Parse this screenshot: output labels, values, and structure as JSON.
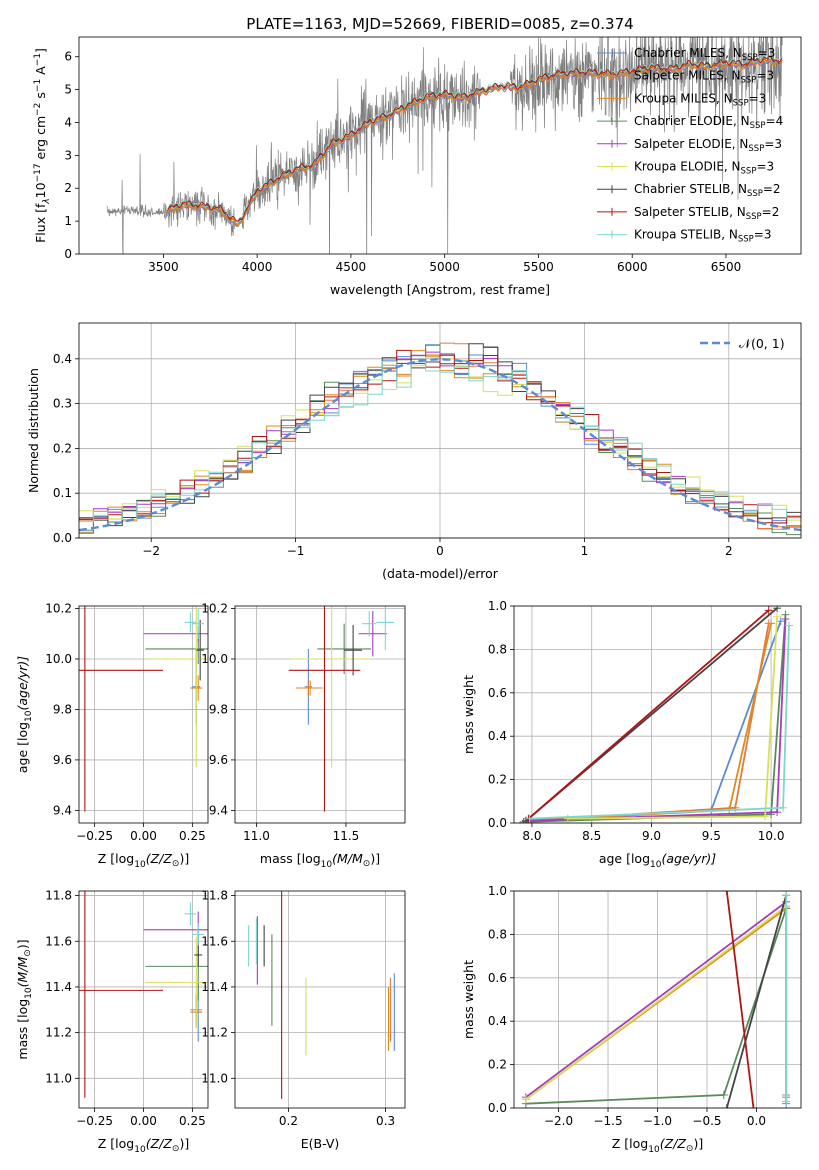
{
  "figure_title": "PLATE=1163, MJD=52669, FIBERID=0085, z=0.374",
  "legend_sub": "SSP",
  "colors": {
    "spectrum": "#7f7f7f",
    "gaussian": "#5b8bd6",
    "grid": "#b0b0b0"
  },
  "models": [
    {
      "name": "Chabrier MILES, N",
      "nssp": "=3",
      "color": "#5b8bd6"
    },
    {
      "name": "Salpeter MILES, N",
      "nssp": "=3",
      "color": "#e07b39"
    },
    {
      "name": "Kroupa MILES, N",
      "nssp": "=3",
      "color": "#e08a1e"
    },
    {
      "name": "Chabrier ELODIE, N",
      "nssp": "=4",
      "color": "#5a8a5a"
    },
    {
      "name": "Salpeter ELODIE, N",
      "nssp": "=3",
      "color": "#a63cc0"
    },
    {
      "name": "Kroupa ELODIE, N",
      "nssp": "=3",
      "color": "#d8e05a"
    },
    {
      "name": "Chabrier STELIB, N",
      "nssp": "=2",
      "color": "#444444"
    },
    {
      "name": "Salpeter STELIB, N",
      "nssp": "=2",
      "color": "#b01515"
    },
    {
      "name": "Kroupa STELIB, N",
      "nssp": "=3",
      "color": "#7fd6cf"
    }
  ],
  "chart_data": [
    {
      "id": "spectrum",
      "type": "line",
      "xlabel": "wavelength [Angstrom, rest frame]",
      "ylabel": "Flux [f",
      "ylabel_rest": "10",
      "ylabel_exp": "−17",
      "ylabel_units": " erg cm",
      "xlim": [
        3050,
        6900
      ],
      "ylim": [
        0,
        6.6
      ],
      "xticks": [
        3500,
        4000,
        4500,
        5000,
        5500,
        6000,
        6500
      ],
      "yticks": [
        0,
        1,
        2,
        3,
        4,
        5,
        6
      ],
      "continuum": [
        [
          3200,
          1.25
        ],
        [
          3300,
          1.35
        ],
        [
          3400,
          1.3
        ],
        [
          3500,
          1.25
        ],
        [
          3600,
          1.5
        ],
        [
          3700,
          1.45
        ],
        [
          3800,
          1.35
        ],
        [
          3900,
          0.9
        ],
        [
          4000,
          1.9
        ],
        [
          4100,
          2.25
        ],
        [
          4200,
          2.55
        ],
        [
          4300,
          2.7
        ],
        [
          4400,
          3.35
        ],
        [
          4500,
          3.6
        ],
        [
          4600,
          4.0
        ],
        [
          4700,
          4.2
        ],
        [
          4800,
          4.5
        ],
        [
          4900,
          4.75
        ],
        [
          5000,
          4.85
        ],
        [
          5100,
          4.75
        ],
        [
          5200,
          4.95
        ],
        [
          5300,
          5.1
        ],
        [
          5400,
          5.05
        ],
        [
          5500,
          5.3
        ],
        [
          5600,
          5.45
        ],
        [
          5700,
          5.5
        ],
        [
          5800,
          5.5
        ],
        [
          5900,
          5.45
        ],
        [
          6000,
          5.55
        ],
        [
          6100,
          5.65
        ],
        [
          6200,
          5.6
        ],
        [
          6300,
          5.75
        ],
        [
          6400,
          5.7
        ],
        [
          6500,
          5.8
        ],
        [
          6600,
          5.75
        ],
        [
          6700,
          5.9
        ],
        [
          6800,
          5.85
        ]
      ],
      "model_start": 3520,
      "data_segments": [
        [
          3200,
          3880
        ],
        [
          3920,
          5190
        ],
        [
          5350,
          6800
        ]
      ]
    },
    {
      "id": "residuals",
      "type": "histogram",
      "xlabel": "(data-model)/error",
      "ylabel": "Normed distribution",
      "xlim": [
        -2.5,
        2.5
      ],
      "ylim": [
        0,
        0.48
      ],
      "xticks": [
        -2,
        -1,
        0,
        1,
        2
      ],
      "yticks": [
        0.0,
        0.1,
        0.2,
        0.3,
        0.4
      ],
      "legend": "𝒩(0, 1)",
      "bin_width": 0.1
    },
    {
      "id": "age-vs-Z",
      "type": "errorbar",
      "xlabel": "Z [log",
      "xlabel_sub": "10",
      "xlabel_rest": "(Z/Z",
      "ylabel": "age  [log",
      "ylabel_sub": "10",
      "ylabel_rest": "(age/yr)]",
      "xlim": [
        -0.33,
        0.33
      ],
      "ylim": [
        9.35,
        10.21
      ],
      "xticks": [
        -0.25,
        0.0,
        0.25
      ],
      "yticks": [
        9.4,
        9.6,
        9.8,
        10.0,
        10.2
      ],
      "points": [
        {
          "m": 0,
          "x": 0.27,
          "y": 9.89,
          "xe": 0.02,
          "ye": 0.15
        },
        {
          "m": 1,
          "x": 0.27,
          "y": 9.885,
          "xe": 0.03,
          "ye": 0.05
        },
        {
          "m": 2,
          "x": 0.28,
          "y": 9.885,
          "xe": 0.02,
          "ye": 0.05
        },
        {
          "m": 3,
          "x": 0.28,
          "y": 10.04,
          "xe": 0.27,
          "ye": 0.06
        },
        {
          "m": 4,
          "x": 0.28,
          "y": 10.1,
          "xe": 0.28,
          "ye": 0.03
        },
        {
          "m": 5,
          "x": 0.27,
          "y": 10.0,
          "xe": 0.26,
          "ye": 0.43
        },
        {
          "m": 6,
          "x": 0.29,
          "y": 10.035,
          "xe": 0.02,
          "ye": 0.12
        },
        {
          "m": 7,
          "x": -0.3,
          "y": 9.955,
          "xe": 0.4,
          "ye": 0.56
        },
        {
          "m": 8,
          "x": 0.28,
          "y": 10.14,
          "xe": 0.03,
          "ye": 0.06
        },
        {
          "m": 8,
          "x": 0.24,
          "y": 10.145,
          "xe": 0.03,
          "ye": 0.04
        }
      ]
    },
    {
      "id": "age-vs-mass",
      "type": "errorbar",
      "xlabel": "mass [log",
      "xlabel_sub": "10",
      "xlabel_rest": "(M/M",
      "xlim": [
        10.88,
        11.83
      ],
      "ylim": [
        9.35,
        10.21
      ],
      "xticks": [
        11.0,
        11.5
      ],
      "yticks": [
        9.4,
        9.6,
        9.8,
        10.0,
        10.2
      ],
      "points": [
        {
          "m": 0,
          "x": 11.29,
          "y": 9.89,
          "xe": 0.02,
          "ye": 0.15
        },
        {
          "m": 1,
          "x": 11.29,
          "y": 9.885,
          "xe": 0.07,
          "ye": 0.03
        },
        {
          "m": 2,
          "x": 11.3,
          "y": 9.885,
          "xe": 0.07,
          "ye": 0.03
        },
        {
          "m": 3,
          "x": 11.49,
          "y": 10.04,
          "xe": 0.15,
          "ye": 0.1
        },
        {
          "m": 4,
          "x": 11.65,
          "y": 10.1,
          "xe": 0.08,
          "ye": 0.09
        },
        {
          "m": 5,
          "x": 11.42,
          "y": 10.0,
          "xe": 0.22,
          "ye": 0.43
        },
        {
          "m": 6,
          "x": 11.54,
          "y": 10.035,
          "xe": 0.05,
          "ye": 0.1
        },
        {
          "m": 7,
          "x": 11.38,
          "y": 9.955,
          "xe": 0.2,
          "ye": 0.56
        },
        {
          "m": 8,
          "x": 11.63,
          "y": 10.14,
          "xe": 0.04,
          "ye": 0.05
        },
        {
          "m": 8,
          "x": 11.72,
          "y": 10.145,
          "xe": 0.05,
          "ye": 0.11
        }
      ]
    },
    {
      "id": "mass-weight-vs-age",
      "type": "line",
      "xlabel": "age  [log",
      "xlabel_sub": "10",
      "xlabel_rest": "(age/yr)]",
      "ylabel": "mass weight",
      "xlim": [
        7.85,
        10.25
      ],
      "ylim": [
        0,
        1
      ],
      "xticks": [
        8.0,
        8.5,
        9.0,
        9.5,
        10.0
      ],
      "yticks": [
        0.0,
        0.2,
        0.4,
        0.6,
        0.8,
        1.0
      ],
      "series": [
        {
          "m": 0,
          "x": [
            7.95,
            9.5,
            10.08
          ],
          "y": [
            0.01,
            0.06,
            0.93
          ]
        },
        {
          "m": 1,
          "x": [
            7.95,
            9.7,
            9.98
          ],
          "y": [
            0.01,
            0.07,
            0.92
          ]
        },
        {
          "m": 2,
          "x": [
            8.3,
            9.65,
            10.0
          ],
          "y": [
            0.02,
            0.06,
            0.92
          ]
        },
        {
          "m": 3,
          "x": [
            7.93,
            10.0,
            10.12
          ],
          "y": [
            0.005,
            0.04,
            0.96
          ]
        },
        {
          "m": 4,
          "x": [
            7.95,
            10.05,
            10.12
          ],
          "y": [
            0.01,
            0.05,
            0.94
          ]
        },
        {
          "m": 5,
          "x": [
            8.3,
            9.95,
            10.05
          ],
          "y": [
            0.02,
            0.03,
            0.95
          ]
        },
        {
          "m": 6,
          "x": [
            7.95,
            10.05
          ],
          "y": [
            0.01,
            0.99
          ]
        },
        {
          "m": 7,
          "x": [
            7.97,
            9.98
          ],
          "y": [
            0.02,
            0.98
          ]
        },
        {
          "m": 8,
          "x": [
            7.98,
            10.1,
            10.15
          ],
          "y": [
            0.02,
            0.07,
            0.91
          ]
        }
      ]
    },
    {
      "id": "mass-vs-Z",
      "type": "errorbar",
      "xlabel": "Z [log",
      "xlabel_sub": "10",
      "xlabel_rest": "(Z/Z",
      "ylabel": "mass [log",
      "ylabel_sub": "10",
      "ylabel_rest": "(M/M",
      "xlim": [
        -0.33,
        0.33
      ],
      "ylim": [
        10.87,
        11.82
      ],
      "xticks": [
        -0.25,
        0.0,
        0.25
      ],
      "yticks": [
        11.0,
        11.2,
        11.4,
        11.6,
        11.8
      ],
      "points": [
        {
          "m": 0,
          "x": 0.28,
          "y": 11.29,
          "xe": 0.02,
          "ye": 0.13
        },
        {
          "m": 1,
          "x": 0.27,
          "y": 11.29,
          "xe": 0.03,
          "ye": 0.07
        },
        {
          "m": 2,
          "x": 0.27,
          "y": 11.3,
          "xe": 0.03,
          "ye": 0.07
        },
        {
          "m": 3,
          "x": 0.28,
          "y": 11.49,
          "xe": 0.27,
          "ye": 0.15
        },
        {
          "m": 4,
          "x": 0.28,
          "y": 11.65,
          "xe": 0.28,
          "ye": 0.08
        },
        {
          "m": 5,
          "x": 0.27,
          "y": 11.42,
          "xe": 0.26,
          "ye": 0.2
        },
        {
          "m": 6,
          "x": 0.28,
          "y": 11.54,
          "xe": 0.02,
          "ye": 0.05
        },
        {
          "m": 7,
          "x": -0.3,
          "y": 11.385,
          "xe": 0.4,
          "ye": 0.47
        },
        {
          "m": 8,
          "x": 0.28,
          "y": 11.63,
          "xe": 0.03,
          "ye": 0.05
        },
        {
          "m": 8,
          "x": 0.24,
          "y": 11.72,
          "xe": 0.03,
          "ye": 0.05
        }
      ]
    },
    {
      "id": "mass-vs-EBV",
      "type": "errorbar",
      "xlabel": "E(B-V)",
      "xlim": [
        0.145,
        0.32
      ],
      "ylim": [
        10.87,
        11.82
      ],
      "xticks": [
        0.2,
        0.3
      ],
      "yticks": [
        11.0,
        11.2,
        11.4,
        11.6,
        11.8
      ],
      "points": [
        {
          "m": 0,
          "x": 0.309,
          "y": 11.29,
          "xe": 0,
          "ye": 0.17
        },
        {
          "m": 1,
          "x": 0.305,
          "y": 11.3,
          "xe": 0,
          "ye": 0.14
        },
        {
          "m": 2,
          "x": 0.303,
          "y": 11.26,
          "xe": 0,
          "ye": 0.14
        },
        {
          "m": 3,
          "x": 0.183,
          "y": 11.43,
          "xe": 0,
          "ye": 0.2
        },
        {
          "m": 4,
          "x": 0.168,
          "y": 11.56,
          "xe": 0,
          "ye": 0.15
        },
        {
          "m": 5,
          "x": 0.218,
          "y": 11.27,
          "xe": 0,
          "ye": 0.17
        },
        {
          "m": 6,
          "x": 0.175,
          "y": 11.58,
          "xe": 0,
          "ye": 0.09
        },
        {
          "m": 7,
          "x": 0.193,
          "y": 11.39,
          "xe": 0,
          "ye": 0.48
        },
        {
          "m": 8,
          "x": 0.159,
          "y": 11.58,
          "xe": 0,
          "ye": 0.09
        },
        {
          "m": 8,
          "x": 0.167,
          "y": 11.6,
          "xe": 0,
          "ye": 0.1
        }
      ]
    },
    {
      "id": "mass-weight-vs-Z",
      "type": "line",
      "xlabel": "Z [log",
      "xlabel_sub": "10",
      "xlabel_rest": "(Z/Z",
      "ylabel": "mass weight",
      "xlim": [
        -2.45,
        0.45
      ],
      "ylim": [
        0,
        1
      ],
      "xticks": [
        -2.0,
        -1.5,
        -1.0,
        -0.5,
        0.0
      ],
      "yticks": [
        0.0,
        0.2,
        0.4,
        0.6,
        0.8,
        1.0
      ],
      "series": [
        {
          "m": 0,
          "x": [
            0.3,
            0.3,
            0.3
          ],
          "y": [
            0.02,
            0.05,
            0.93
          ]
        },
        {
          "m": 1,
          "x": [
            0.3,
            0.3,
            0.3
          ],
          "y": [
            0.03,
            0.06,
            0.92
          ]
        },
        {
          "m": 2,
          "x": [
            -2.33,
            0.3
          ],
          "y": [
            0.04,
            0.92
          ]
        },
        {
          "m": 3,
          "x": [
            -2.33,
            -0.33,
            0.3
          ],
          "y": [
            0.02,
            0.06,
            0.92
          ]
        },
        {
          "m": 4,
          "x": [
            -2.33,
            0.3
          ],
          "y": [
            0.05,
            0.95
          ]
        },
        {
          "m": 5,
          "x": [
            -2.33,
            0.3
          ],
          "y": [
            0.04,
            0.93
          ]
        },
        {
          "m": 6,
          "x": [
            -0.3,
            0.3
          ],
          "y": [
            0.0,
            0.98
          ]
        },
        {
          "m": 7,
          "x": [
            -0.3,
            -0.03
          ],
          "y": [
            1.0,
            0.0
          ]
        },
        {
          "m": 8,
          "x": [
            0.3,
            0.3
          ],
          "y": [
            0.03,
            0.98
          ]
        }
      ]
    }
  ]
}
